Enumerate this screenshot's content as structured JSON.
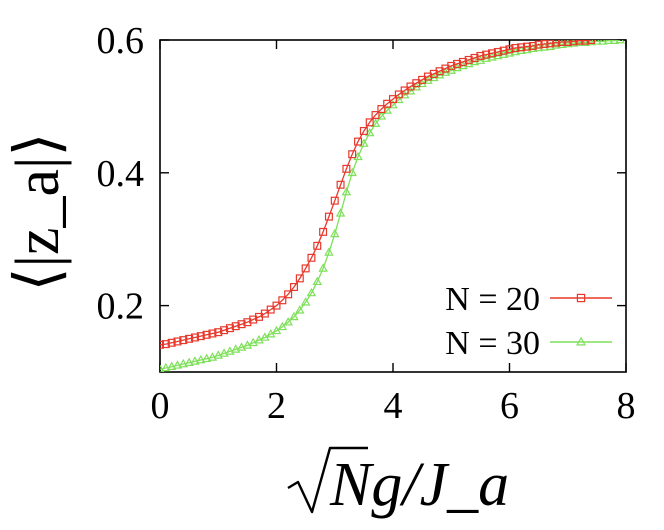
{
  "chart_data": {
    "type": "line",
    "title": "",
    "xlabel": "√Ng/J_a",
    "ylabel": "⟨|z_a|⟩",
    "xlim": [
      0,
      8
    ],
    "ylim": [
      0.1,
      0.6
    ],
    "x_ticks": [
      "0",
      "2",
      "4",
      "6",
      "8"
    ],
    "y_ticks": [
      "0.2",
      "0.4",
      "0.6"
    ],
    "x_tick_values": [
      0,
      2,
      4,
      6,
      8
    ],
    "y_tick_values": [
      0.2,
      0.4,
      0.6
    ],
    "grid": false,
    "legend_position": "bottom-right",
    "series": [
      {
        "name": "N = 20",
        "color": "#e8382c",
        "marker": "square",
        "x": [
          0.0,
          0.1,
          0.2,
          0.3,
          0.4,
          0.5,
          0.6,
          0.7,
          0.8,
          0.9,
          1.0,
          1.1,
          1.2,
          1.3,
          1.4,
          1.5,
          1.6,
          1.7,
          1.8,
          1.9,
          2.0,
          2.1,
          2.2,
          2.3,
          2.4,
          2.5,
          2.6,
          2.7,
          2.8,
          2.9,
          3.0,
          3.1,
          3.2,
          3.3,
          3.4,
          3.5,
          3.6,
          3.7,
          3.8,
          3.9,
          4.0,
          4.1,
          4.2,
          4.3,
          4.4,
          4.5,
          4.6,
          4.7,
          4.8,
          4.9,
          5.0,
          5.1,
          5.2,
          5.3,
          5.4,
          5.5,
          5.6,
          5.7,
          5.8,
          5.9,
          6.0,
          6.1,
          6.2,
          6.3,
          6.4,
          6.5,
          6.6,
          6.7,
          6.8,
          6.9,
          7.0,
          7.1,
          7.2,
          7.3,
          7.4
        ],
        "y": [
          0.141,
          0.142,
          0.144,
          0.146,
          0.148,
          0.15,
          0.152,
          0.154,
          0.156,
          0.158,
          0.16,
          0.163,
          0.166,
          0.169,
          0.172,
          0.175,
          0.179,
          0.183,
          0.188,
          0.194,
          0.2,
          0.208,
          0.217,
          0.228,
          0.241,
          0.256,
          0.272,
          0.29,
          0.311,
          0.334,
          0.358,
          0.382,
          0.406,
          0.428,
          0.447,
          0.463,
          0.476,
          0.487,
          0.496,
          0.504,
          0.511,
          0.518,
          0.524,
          0.53,
          0.535,
          0.54,
          0.545,
          0.549,
          0.553,
          0.557,
          0.561,
          0.564,
          0.567,
          0.57,
          0.573,
          0.576,
          0.578,
          0.58,
          0.582,
          0.584,
          0.586,
          0.588,
          0.589,
          0.59,
          0.591,
          0.593,
          0.594,
          0.595,
          0.596,
          0.597,
          0.597,
          0.598,
          0.599,
          0.599,
          0.6
        ]
      },
      {
        "name": "N = 30",
        "color": "#7ee05a",
        "marker": "triangle",
        "x": [
          0.0,
          0.1,
          0.2,
          0.3,
          0.4,
          0.5,
          0.6,
          0.7,
          0.8,
          0.9,
          1.0,
          1.1,
          1.2,
          1.3,
          1.4,
          1.5,
          1.6,
          1.7,
          1.8,
          1.9,
          2.0,
          2.1,
          2.2,
          2.3,
          2.4,
          2.5,
          2.6,
          2.7,
          2.8,
          2.9,
          3.0,
          3.1,
          3.2,
          3.3,
          3.4,
          3.5,
          3.6,
          3.7,
          3.8,
          3.9,
          4.0,
          4.1,
          4.2,
          4.3,
          4.4,
          4.5,
          4.6,
          4.7,
          4.8,
          4.9,
          5.0,
          5.1,
          5.2,
          5.3,
          5.4,
          5.5,
          5.6,
          5.7,
          5.8,
          5.9,
          6.0,
          6.1,
          6.2,
          6.3,
          6.4,
          6.5,
          6.6,
          6.7,
          6.8,
          6.9,
          7.0,
          7.1,
          7.2,
          7.3,
          7.4,
          7.5,
          7.6,
          7.7,
          7.8,
          7.9
        ],
        "y": [
          0.104,
          0.106,
          0.108,
          0.11,
          0.112,
          0.114,
          0.116,
          0.118,
          0.12,
          0.122,
          0.125,
          0.128,
          0.131,
          0.134,
          0.137,
          0.14,
          0.144,
          0.148,
          0.152,
          0.157,
          0.162,
          0.168,
          0.175,
          0.183,
          0.193,
          0.205,
          0.219,
          0.236,
          0.256,
          0.28,
          0.308,
          0.339,
          0.371,
          0.4,
          0.424,
          0.444,
          0.46,
          0.474,
          0.485,
          0.494,
          0.502,
          0.51,
          0.517,
          0.523,
          0.529,
          0.534,
          0.539,
          0.543,
          0.547,
          0.551,
          0.554,
          0.558,
          0.561,
          0.564,
          0.567,
          0.569,
          0.572,
          0.574,
          0.576,
          0.578,
          0.58,
          0.582,
          0.584,
          0.585,
          0.587,
          0.588,
          0.589,
          0.59,
          0.592,
          0.593,
          0.594,
          0.595,
          0.596,
          0.596,
          0.597,
          0.598,
          0.598,
          0.599,
          0.599,
          0.6
        ]
      }
    ]
  }
}
